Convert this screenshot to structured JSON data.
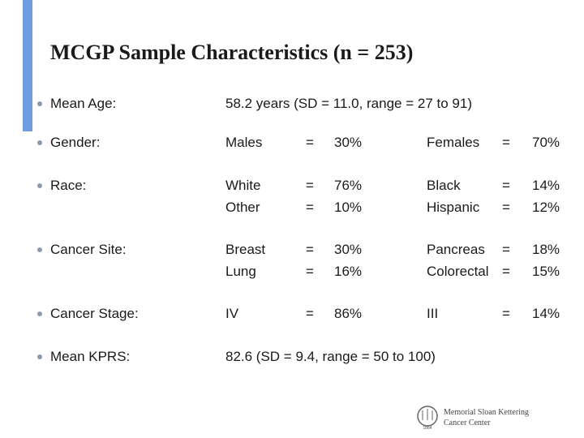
{
  "title": "MCGP Sample Characteristics (n = 253)",
  "items": [
    {
      "label": "Mean Age:",
      "text": "58.2 years (SD = 11.0, range = 27 to 91)"
    },
    {
      "label": "Gender:",
      "rows": [
        [
          "Males",
          "=",
          "30%",
          "Females",
          "=",
          "70%"
        ]
      ]
    },
    {
      "label": "Race:",
      "rows": [
        [
          "White",
          "=",
          "76%",
          "Black",
          "=",
          "14%"
        ],
        [
          "Other",
          "=",
          "10%",
          "Hispanic",
          "=",
          "12%"
        ]
      ]
    },
    {
      "label": "Cancer Site:",
      "rows": [
        [
          "Breast",
          "=",
          "30%",
          "Pancreas",
          "=",
          "18%"
        ],
        [
          "Lung",
          "=",
          "16%",
          "Colorectal",
          "=",
          "15%"
        ]
      ]
    },
    {
      "label": "Cancer Stage:",
      "rows": [
        [
          "IV",
          "=",
          "86%",
          "III",
          "=",
          "14%"
        ]
      ]
    },
    {
      "label": "Mean KPRS:",
      "text": "82.6 (SD = 9.4, range = 50 to 100)"
    }
  ],
  "logo": {
    "line1": "Memorial Sloan Kettering",
    "line2": "Cancer Center",
    "year": "1884"
  }
}
